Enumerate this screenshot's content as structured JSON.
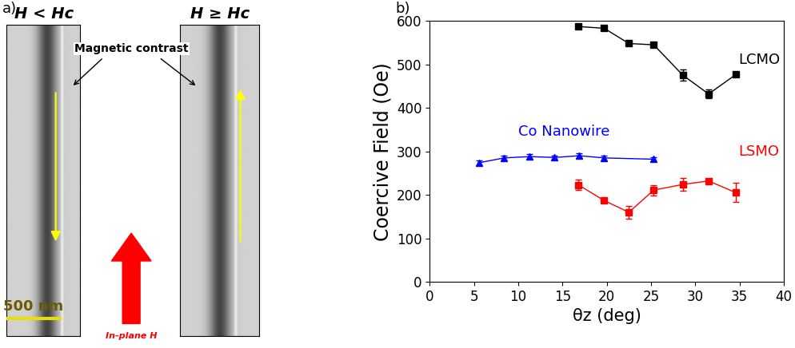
{
  "panel_labels": [
    "a)",
    "b)"
  ],
  "image_panel": {
    "left_title": "H < Hc",
    "right_title": "H ≥ Hc",
    "annotation": "Magnetic contrast",
    "scale_bar": "500 nm",
    "field_label": "In-plane H"
  },
  "chart_data": {
    "type": "scatter",
    "x_label": "θz (deg)",
    "y_label": "Coercive Field (Oe)",
    "xlim": [
      0,
      40
    ],
    "xticks": [
      0,
      5,
      10,
      15,
      20,
      25,
      30,
      35,
      40
    ],
    "ylim": [
      0,
      600
    ],
    "yticks": [
      0,
      100,
      200,
      300,
      400,
      500,
      600
    ],
    "grid": false,
    "series": [
      {
        "name": "LCMO",
        "color": "#000000",
        "marker": "square",
        "line_style": "solid",
        "x": [
          16.8,
          19.7,
          22.5,
          25.3,
          28.6,
          31.5,
          34.6
        ],
        "values": [
          587,
          583,
          548,
          545,
          475,
          432,
          477
        ],
        "errors": [
          4,
          4,
          4,
          4,
          13,
          10,
          4
        ]
      },
      {
        "name": "Co Nanowire",
        "color": "#0000ff",
        "marker": "triangle",
        "line_style": "solid",
        "x": [
          5.6,
          8.4,
          11.3,
          14.1,
          16.9,
          19.7,
          25.3
        ],
        "values": [
          274,
          285,
          288,
          286,
          290,
          285,
          282
        ],
        "errors": [
          5,
          5,
          5,
          5,
          5,
          5,
          5
        ]
      },
      {
        "name": "LSMO",
        "color": "#ff0000",
        "marker": "square",
        "line_style": "solid",
        "x": [
          16.8,
          19.7,
          22.5,
          25.3,
          28.6,
          31.5,
          34.6
        ],
        "values": [
          223,
          187,
          160,
          211,
          224,
          232,
          205
        ],
        "errors": [
          12,
          5,
          15,
          12,
          15,
          5,
          22
        ]
      }
    ]
  }
}
